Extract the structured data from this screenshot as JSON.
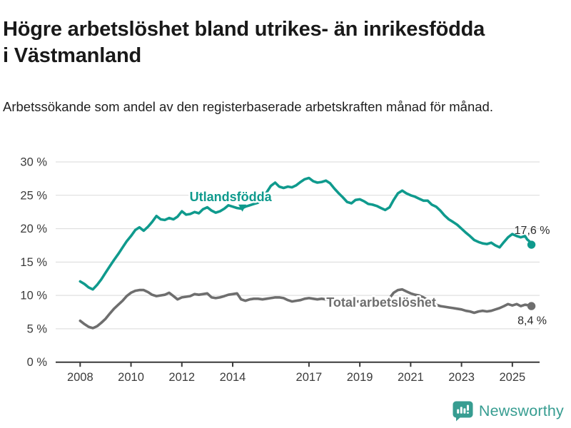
{
  "header": {
    "title": "Högre arbetslöshet bland utrikes- än inrikesfödda i Västmanland",
    "subtitle": "Arbetssökande som andel av den registerbaserade arbetskraften månad för månad."
  },
  "footer": {
    "brand": "Newsworthy",
    "brand_color": "#379d91",
    "logo_icon": "speech-bubble-bar-chart-exclamation"
  },
  "chart_data": {
    "type": "line",
    "title": "",
    "xlabel": "",
    "ylabel": "",
    "ylim": [
      0,
      30
    ],
    "xlim": [
      2007.7,
      2026.2
    ],
    "grid": "horizontal",
    "grid_color": "#d9d9d9",
    "axis_color": "#3a3a3a",
    "tick_label_color": "#3c3c3c",
    "y_ticks": [
      0,
      5,
      10,
      15,
      20,
      25,
      30
    ],
    "y_tick_labels": [
      "0 %",
      "5 %",
      "10 %",
      "15 %",
      "20 %",
      "25 %",
      "30 %"
    ],
    "x_ticks": [
      2008,
      2010,
      2012,
      2014,
      2017,
      2019,
      2021,
      2023,
      2025
    ],
    "x_tick_labels": [
      "2008",
      "2010",
      "2012",
      "2014",
      "2017",
      "2019",
      "2021",
      "2023",
      "2025"
    ],
    "legend_position": "inline-labels",
    "series": [
      {
        "name": "Total arbetslöshet",
        "color": "#6e6e6e",
        "end_label": "8,4 %",
        "end_label_position": "below",
        "label_at": {
          "t": 2019.84,
          "v": 8.97
        },
        "points": [
          [
            2008.0,
            6.2
          ],
          [
            2008.17,
            5.7
          ],
          [
            2008.33,
            5.3
          ],
          [
            2008.5,
            5.1
          ],
          [
            2008.67,
            5.4
          ],
          [
            2008.83,
            5.9
          ],
          [
            2009.0,
            6.5
          ],
          [
            2009.17,
            7.3
          ],
          [
            2009.33,
            8.0
          ],
          [
            2009.5,
            8.6
          ],
          [
            2009.67,
            9.2
          ],
          [
            2009.83,
            9.9
          ],
          [
            2010.0,
            10.4
          ],
          [
            2010.17,
            10.7
          ],
          [
            2010.33,
            10.8
          ],
          [
            2010.5,
            10.8
          ],
          [
            2010.67,
            10.5
          ],
          [
            2010.83,
            10.1
          ],
          [
            2011.0,
            9.9
          ],
          [
            2011.17,
            10.0
          ],
          [
            2011.33,
            10.1
          ],
          [
            2011.5,
            10.4
          ],
          [
            2011.67,
            9.9
          ],
          [
            2011.83,
            9.4
          ],
          [
            2012.0,
            9.7
          ],
          [
            2012.17,
            9.8
          ],
          [
            2012.33,
            9.9
          ],
          [
            2012.5,
            10.2
          ],
          [
            2012.67,
            10.1
          ],
          [
            2012.83,
            10.2
          ],
          [
            2013.0,
            10.3
          ],
          [
            2013.17,
            9.7
          ],
          [
            2013.33,
            9.6
          ],
          [
            2013.5,
            9.7
          ],
          [
            2013.67,
            9.9
          ],
          [
            2013.83,
            10.1
          ],
          [
            2014.0,
            10.2
          ],
          [
            2014.17,
            10.3
          ],
          [
            2014.33,
            9.4
          ],
          [
            2014.5,
            9.2
          ],
          [
            2014.67,
            9.4
          ],
          [
            2014.83,
            9.5
          ],
          [
            2015.0,
            9.5
          ],
          [
            2015.17,
            9.4
          ],
          [
            2015.33,
            9.5
          ],
          [
            2015.5,
            9.6
          ],
          [
            2015.67,
            9.7
          ],
          [
            2015.83,
            9.7
          ],
          [
            2016.0,
            9.6
          ],
          [
            2016.17,
            9.3
          ],
          [
            2016.33,
            9.1
          ],
          [
            2016.5,
            9.2
          ],
          [
            2016.67,
            9.3
          ],
          [
            2016.83,
            9.5
          ],
          [
            2017.0,
            9.6
          ],
          [
            2017.17,
            9.5
          ],
          [
            2017.33,
            9.4
          ],
          [
            2017.5,
            9.5
          ],
          [
            2017.67,
            9.4
          ],
          [
            2017.83,
            9.3
          ],
          [
            2018.0,
            9.2
          ],
          [
            2018.17,
            9.1
          ],
          [
            2018.33,
            9.0
          ],
          [
            2018.5,
            8.9
          ],
          [
            2018.67,
            9.0
          ],
          [
            2018.83,
            9.1
          ],
          [
            2019.0,
            9.1
          ],
          [
            2019.17,
            9.0
          ],
          [
            2019.33,
            8.9
          ],
          [
            2019.5,
            8.9
          ],
          [
            2019.67,
            8.9
          ],
          [
            2019.83,
            8.8
          ],
          [
            2020.0,
            8.9
          ],
          [
            2020.17,
            9.6
          ],
          [
            2020.33,
            10.4
          ],
          [
            2020.5,
            10.8
          ],
          [
            2020.67,
            10.9
          ],
          [
            2020.83,
            10.6
          ],
          [
            2021.0,
            10.3
          ],
          [
            2021.17,
            10.1
          ],
          [
            2021.33,
            10.0
          ],
          [
            2021.5,
            9.7
          ],
          [
            2021.67,
            9.3
          ],
          [
            2021.83,
            8.9
          ],
          [
            2022.0,
            8.6
          ],
          [
            2022.17,
            8.4
          ],
          [
            2022.33,
            8.3
          ],
          [
            2022.5,
            8.2
          ],
          [
            2022.67,
            8.1
          ],
          [
            2022.83,
            8.0
          ],
          [
            2023.0,
            7.9
          ],
          [
            2023.17,
            7.7
          ],
          [
            2023.33,
            7.6
          ],
          [
            2023.5,
            7.4
          ],
          [
            2023.67,
            7.6
          ],
          [
            2023.83,
            7.7
          ],
          [
            2024.0,
            7.6
          ],
          [
            2024.17,
            7.7
          ],
          [
            2024.33,
            7.9
          ],
          [
            2024.5,
            8.1
          ],
          [
            2024.67,
            8.4
          ],
          [
            2024.83,
            8.7
          ],
          [
            2025.0,
            8.5
          ],
          [
            2025.17,
            8.7
          ],
          [
            2025.33,
            8.4
          ],
          [
            2025.5,
            8.6
          ],
          [
            2025.67,
            8.5
          ],
          [
            2025.75,
            8.4
          ]
        ]
      },
      {
        "name": "Utlandsfödda",
        "color": "#0f9a8d",
        "end_label": "17,6 %",
        "end_label_position": "above",
        "label_at": {
          "t": 2013.92,
          "v": 24.78
        },
        "pointer_arrow": {
          "t": 2014.38,
          "v": 22.55
        },
        "points": [
          [
            2008.0,
            12.1
          ],
          [
            2008.17,
            11.7
          ],
          [
            2008.33,
            11.2
          ],
          [
            2008.5,
            10.9
          ],
          [
            2008.67,
            11.6
          ],
          [
            2008.83,
            12.4
          ],
          [
            2009.0,
            13.4
          ],
          [
            2009.17,
            14.4
          ],
          [
            2009.33,
            15.3
          ],
          [
            2009.5,
            16.2
          ],
          [
            2009.67,
            17.2
          ],
          [
            2009.83,
            18.1
          ],
          [
            2010.0,
            18.9
          ],
          [
            2010.17,
            19.8
          ],
          [
            2010.33,
            20.2
          ],
          [
            2010.5,
            19.7
          ],
          [
            2010.67,
            20.3
          ],
          [
            2010.83,
            21.0
          ],
          [
            2011.0,
            21.9
          ],
          [
            2011.17,
            21.4
          ],
          [
            2011.33,
            21.3
          ],
          [
            2011.5,
            21.6
          ],
          [
            2011.67,
            21.4
          ],
          [
            2011.83,
            21.8
          ],
          [
            2012.0,
            22.6
          ],
          [
            2012.17,
            22.1
          ],
          [
            2012.33,
            22.2
          ],
          [
            2012.5,
            22.5
          ],
          [
            2012.67,
            22.3
          ],
          [
            2012.83,
            22.9
          ],
          [
            2013.0,
            23.2
          ],
          [
            2013.17,
            22.7
          ],
          [
            2013.33,
            22.4
          ],
          [
            2013.5,
            22.6
          ],
          [
            2013.67,
            23.0
          ],
          [
            2013.83,
            23.5
          ],
          [
            2014.0,
            23.3
          ],
          [
            2014.17,
            23.1
          ],
          [
            2014.33,
            23.0
          ],
          [
            2014.5,
            23.3
          ],
          [
            2014.67,
            23.5
          ],
          [
            2014.83,
            23.7
          ],
          [
            2015.0,
            23.9
          ],
          [
            2015.17,
            24.5
          ],
          [
            2015.33,
            25.4
          ],
          [
            2015.5,
            26.4
          ],
          [
            2015.67,
            26.9
          ],
          [
            2015.83,
            26.3
          ],
          [
            2016.0,
            26.1
          ],
          [
            2016.17,
            26.3
          ],
          [
            2016.33,
            26.2
          ],
          [
            2016.5,
            26.5
          ],
          [
            2016.67,
            27.0
          ],
          [
            2016.83,
            27.4
          ],
          [
            2017.0,
            27.6
          ],
          [
            2017.17,
            27.1
          ],
          [
            2017.33,
            26.9
          ],
          [
            2017.5,
            27.0
          ],
          [
            2017.67,
            27.2
          ],
          [
            2017.83,
            26.8
          ],
          [
            2018.0,
            26.0
          ],
          [
            2018.17,
            25.3
          ],
          [
            2018.33,
            24.7
          ],
          [
            2018.5,
            24.0
          ],
          [
            2018.67,
            23.8
          ],
          [
            2018.83,
            24.3
          ],
          [
            2019.0,
            24.4
          ],
          [
            2019.17,
            24.1
          ],
          [
            2019.33,
            23.7
          ],
          [
            2019.5,
            23.6
          ],
          [
            2019.67,
            23.4
          ],
          [
            2019.83,
            23.1
          ],
          [
            2020.0,
            22.8
          ],
          [
            2020.17,
            23.2
          ],
          [
            2020.33,
            24.3
          ],
          [
            2020.5,
            25.3
          ],
          [
            2020.67,
            25.7
          ],
          [
            2020.83,
            25.3
          ],
          [
            2021.0,
            25.0
          ],
          [
            2021.17,
            24.8
          ],
          [
            2021.33,
            24.5
          ],
          [
            2021.5,
            24.2
          ],
          [
            2021.67,
            24.2
          ],
          [
            2021.83,
            23.6
          ],
          [
            2022.0,
            23.3
          ],
          [
            2022.17,
            22.7
          ],
          [
            2022.33,
            22.0
          ],
          [
            2022.5,
            21.4
          ],
          [
            2022.67,
            21.0
          ],
          [
            2022.83,
            20.6
          ],
          [
            2023.0,
            20.0
          ],
          [
            2023.17,
            19.4
          ],
          [
            2023.33,
            18.9
          ],
          [
            2023.5,
            18.3
          ],
          [
            2023.67,
            18.0
          ],
          [
            2023.83,
            17.8
          ],
          [
            2024.0,
            17.7
          ],
          [
            2024.17,
            17.9
          ],
          [
            2024.33,
            17.5
          ],
          [
            2024.5,
            17.2
          ],
          [
            2024.67,
            18.0
          ],
          [
            2024.83,
            18.7
          ],
          [
            2025.0,
            19.2
          ],
          [
            2025.17,
            18.9
          ],
          [
            2025.33,
            18.7
          ],
          [
            2025.5,
            18.9
          ],
          [
            2025.58,
            18.4
          ],
          [
            2025.67,
            18.1
          ],
          [
            2025.75,
            17.6
          ]
        ]
      }
    ]
  }
}
